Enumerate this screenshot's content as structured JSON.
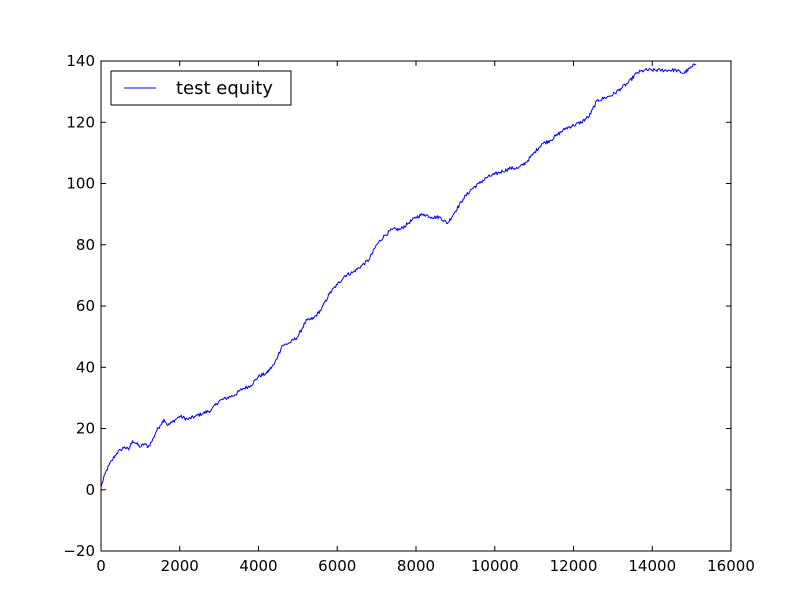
{
  "chart_data": {
    "type": "line",
    "title": "",
    "xlabel": "",
    "ylabel": "",
    "xlim": [
      0,
      16000
    ],
    "ylim": [
      -20,
      140
    ],
    "xticks": [
      0,
      2000,
      4000,
      6000,
      8000,
      10000,
      12000,
      14000,
      16000
    ],
    "yticks": [
      -20,
      0,
      20,
      40,
      60,
      80,
      100,
      120,
      140
    ],
    "xtick_labels": [
      "0",
      "2000",
      "4000",
      "6000",
      "8000",
      "10000",
      "12000",
      "14000",
      "16000"
    ],
    "ytick_labels": [
      "−20",
      "0",
      "20",
      "40",
      "60",
      "80",
      "100",
      "120",
      "140"
    ],
    "grid": false,
    "legend": {
      "position": "top-left",
      "entries": [
        "test equity"
      ]
    },
    "series": [
      {
        "name": "test equity",
        "color": "#0000ff",
        "x": [
          0,
          100,
          200,
          300,
          400,
          500,
          600,
          700,
          800,
          900,
          1000,
          1100,
          1200,
          1300,
          1400,
          1500,
          1600,
          1700,
          1800,
          1900,
          2000,
          2200,
          2400,
          2600,
          2800,
          3000,
          3200,
          3400,
          3600,
          3800,
          4000,
          4200,
          4400,
          4500,
          4600,
          4800,
          5000,
          5200,
          5400,
          5600,
          5800,
          6000,
          6200,
          6400,
          6600,
          6800,
          7000,
          7200,
          7400,
          7600,
          7800,
          8000,
          8200,
          8400,
          8600,
          8800,
          9000,
          9200,
          9400,
          9600,
          9800,
          10000,
          10200,
          10400,
          10600,
          10800,
          11000,
          11200,
          11400,
          11600,
          11800,
          12000,
          12200,
          12400,
          12600,
          12800,
          13000,
          13200,
          13400,
          13600,
          13800,
          14000,
          14200,
          14400,
          14600,
          14800,
          15000,
          15100
        ],
        "y": [
          1,
          5,
          8,
          10,
          12,
          13,
          14,
          13,
          16,
          15,
          14,
          15,
          14,
          16,
          19,
          21,
          23,
          21,
          22,
          23,
          24,
          23,
          24,
          25,
          26,
          29,
          30,
          31,
          33,
          34,
          37,
          38,
          41,
          44,
          47,
          48,
          50,
          55,
          56,
          59,
          64,
          67,
          70,
          71,
          73,
          75,
          80,
          83,
          85,
          85,
          87,
          89,
          90,
          89,
          89,
          87,
          91,
          95,
          98,
          100,
          102,
          103,
          104,
          105,
          105,
          107,
          110,
          113,
          114,
          116,
          118,
          119,
          120,
          122,
          127,
          128,
          129,
          131,
          133,
          136,
          137,
          137,
          137,
          137,
          137,
          136,
          138,
          139
        ]
      }
    ]
  }
}
